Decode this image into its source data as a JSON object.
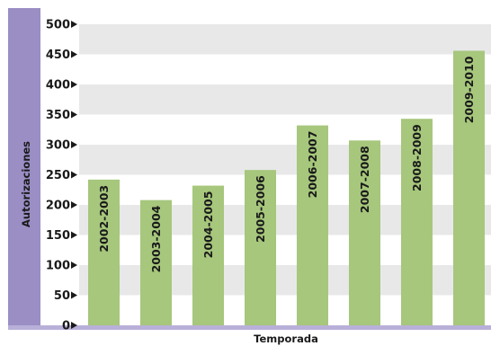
{
  "chart_data": {
    "type": "bar",
    "categories": [
      "2002-2003",
      "2003-2004",
      "2004-2005",
      "2005-2006",
      "2006-2007",
      "2007-2008",
      "2008-2009",
      "2009-2010"
    ],
    "values": [
      242,
      208,
      232,
      258,
      332,
      307,
      343,
      456
    ],
    "title": "",
    "xlabel": "Temporada",
    "ylabel": "Autorizaciones",
    "ylim": [
      0,
      500
    ],
    "yticks": [
      0,
      50,
      100,
      150,
      200,
      250,
      300,
      350,
      400,
      450,
      500
    ],
    "grid": "alternating horizontal bands",
    "colors": {
      "bar": "#a6c77c",
      "axis_band": "#9a8ec4",
      "axis_line": "#b9b0d9",
      "grid_band": "#e8e8e8",
      "background": "#ffffff"
    }
  }
}
